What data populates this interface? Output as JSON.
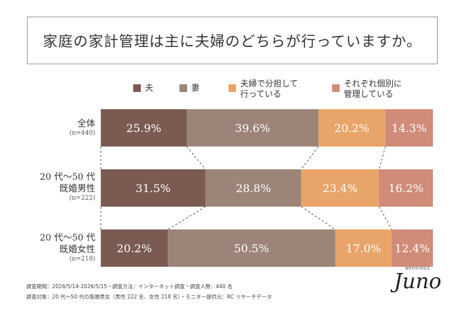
{
  "title": "家庭の家計管理は主に夫婦のどちらが行っていますか。",
  "colors": [
    "#7a5a51",
    "#9c8478",
    "#e8a469",
    "#d08c79"
  ],
  "chart_data": {
    "type": "bar",
    "orientation": "horizontal",
    "stacked": true,
    "unit": "%",
    "legend_position": "top",
    "series": [
      {
        "name": "夫",
        "values": [
          25.9,
          31.5,
          20.2
        ]
      },
      {
        "name": "妻",
        "values": [
          39.6,
          28.8,
          50.5
        ]
      },
      {
        "name": "夫婦で分担して\n行っている",
        "values": [
          20.2,
          23.4,
          17.0
        ]
      },
      {
        "name": "それぞれ個別に\n管理している",
        "values": [
          14.3,
          16.2,
          12.4
        ]
      }
    ],
    "value_labels": [
      [
        "25.9%",
        "39.6%",
        "20.2%",
        "14.3%"
      ],
      [
        "31.5%",
        "28.8%",
        "23.4%",
        "16.2%"
      ],
      [
        "20.2%",
        "50.5%",
        "17.0%",
        "12.4%"
      ]
    ],
    "categories": [
      {
        "lines": [
          "全体"
        ],
        "n": "(n=440)"
      },
      {
        "lines": [
          "20 代～50 代",
          "既婚男性"
        ],
        "n": "(n=222)"
      },
      {
        "lines": [
          "20 代～50 代",
          "既婚女性"
        ],
        "n": "(n=218)"
      }
    ]
  },
  "footer": {
    "line1": "調査期間：2026/5/14-2026/5/15・調査方法：インターネット調査・調査人数：440 名",
    "line2": "調査対象：20 代～50 代の既婚男女（男性 222 名、女性 218 名）・モニター提供元：RC リサーチデータ"
  },
  "logo": {
    "tag": "WEDDINGS",
    "word": "Juno"
  }
}
